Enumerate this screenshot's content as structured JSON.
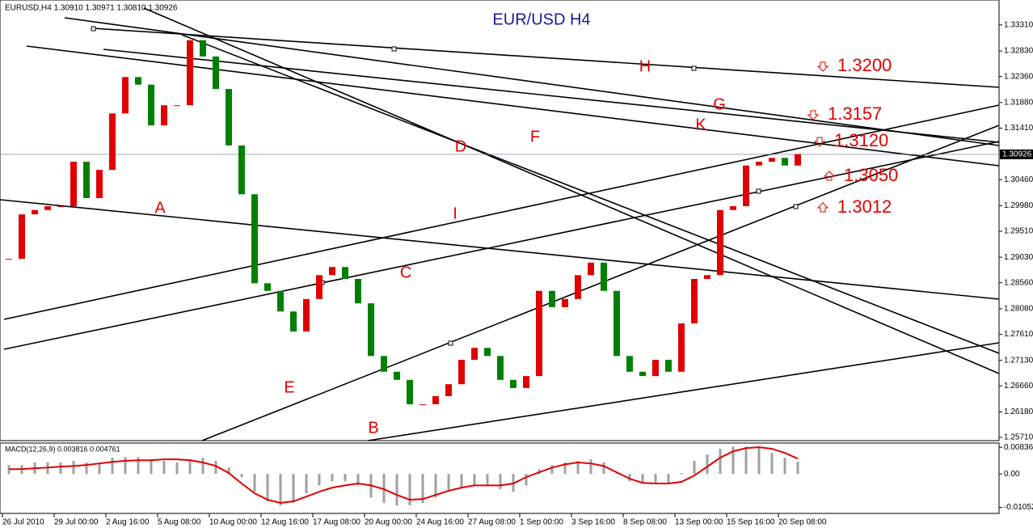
{
  "chart_data": [
    {
      "type": "candlestick",
      "title": "EUR/USD  H4",
      "info": "EURUSD,H4  1.30910 1.30971 1.30810 1.30926",
      "categories": [
        "26 Jul 2010",
        null,
        null,
        null,
        "29 Jul 00:00",
        null,
        null,
        null,
        "2 Aug 16:00",
        null,
        null,
        null,
        "5 Aug 08:00",
        null,
        null,
        null,
        "10 Aug 00:00",
        null,
        null,
        null,
        "12 Aug 16:00",
        null,
        null,
        null,
        "17 Aug 08:00",
        null,
        null,
        null,
        "20 Aug 00:00",
        null,
        null,
        null,
        "24 Aug 16:00",
        null,
        null,
        null,
        "27 Aug 08:00",
        null,
        null,
        null,
        "1 Sep 00:00",
        null,
        null,
        null,
        "3 Sep 16:00",
        null,
        null,
        null,
        "8 Sep 08:00",
        null,
        null,
        null,
        "13 Sep 00:00",
        null,
        null,
        null,
        "15 Sep 16:00",
        null,
        null,
        null,
        "20 Sep 08:00",
        null
      ],
      "close": [
        1.29,
        1.2982,
        1.299,
        1.2997,
        1.2997,
        1.3079,
        1.3012,
        1.3064,
        1.3168,
        1.3235,
        1.3221,
        1.3146,
        1.3183,
        1.3183,
        1.3303,
        1.3273,
        1.3213,
        1.3109,
        1.3019,
        1.2855,
        1.2841,
        1.2803,
        1.2766,
        1.2826,
        1.287,
        1.2885,
        1.2863,
        1.2818,
        1.2721,
        1.2692,
        1.2677,
        1.2632,
        1.2632,
        1.2647,
        1.2669,
        1.2714,
        1.2736,
        1.2721,
        1.2677,
        1.2662,
        1.2684,
        1.2841,
        1.2811,
        1.2826,
        1.287,
        1.2893,
        1.2841,
        1.2721,
        1.2692,
        1.2684,
        1.2714,
        1.2692,
        1.2781,
        1.2863,
        1.287,
        1.299,
        1.2997,
        1.3072,
        1.3079,
        1.3086,
        1.3072,
        1.3093
      ],
      "up_color": "#e00000",
      "down_color": "#008000",
      "ylim": [
        1.2565,
        1.3377
      ],
      "yticks": [
        {
          "value": 1.3331,
          "label": "1.33310"
        },
        {
          "value": 1.3283,
          "label": "1.32830"
        },
        {
          "value": 1.3236,
          "label": "1.32360"
        },
        {
          "value": 1.3188,
          "label": "1.31880"
        },
        {
          "value": 1.3141,
          "label": "1.31410"
        },
        {
          "value": 1.3046,
          "label": "1.30460"
        },
        {
          "value": 1.2998,
          "label": "1.29980"
        },
        {
          "value": 1.2951,
          "label": "1.29510"
        },
        {
          "value": 1.2903,
          "label": "1.29030"
        },
        {
          "value": 1.2856,
          "label": "1.28560"
        },
        {
          "value": 1.2808,
          "label": "1.28080"
        },
        {
          "value": 1.2761,
          "label": "1.27610"
        },
        {
          "value": 1.2713,
          "label": "1.27130"
        },
        {
          "value": 1.2666,
          "label": "1.26660"
        },
        {
          "value": 1.2618,
          "label": "1.26180"
        },
        {
          "value": 1.2571,
          "label": "1.25710"
        }
      ],
      "last_price": 1.30926,
      "annotations": [
        "A",
        "B",
        "C",
        "D",
        "E",
        "F",
        "G",
        "H",
        "I",
        "K"
      ],
      "levels": [
        "1.3200",
        "1.3157",
        "1.3120",
        "1.3050",
        "1.3012"
      ]
    },
    {
      "type": "macd",
      "label": "MACD(12,26,9) 0.003816 0.004761",
      "series": [
        {
          "color": "#a0a0a0",
          "values": [
            0.0028,
            0.0028,
            0.0036,
            0.0036,
            0.0036,
            0.0041,
            0.0036,
            0.0036,
            0.0051,
            0.0053,
            0.0053,
            0.0046,
            0.0041,
            0.0036,
            0.0046,
            0.0051,
            0.0041,
            0.002,
            -0.001,
            -0.0056,
            -0.0086,
            -0.0099,
            -0.0091,
            -0.0061,
            -0.0036,
            -0.0023,
            -0.0023,
            -0.0036,
            -0.0074,
            -0.0091,
            -0.0099,
            -0.0099,
            -0.0091,
            -0.0074,
            -0.0056,
            -0.0041,
            -0.0036,
            -0.0036,
            -0.0048,
            -0.0056,
            -0.0036,
            0.0015,
            0.0028,
            0.0036,
            0.0041,
            0.0046,
            0.0036,
            0.0003,
            -0.0023,
            -0.003,
            -0.003,
            -0.003,
            0.0003,
            0.0041,
            0.0061,
            0.0079,
            0.0086,
            0.0086,
            0.0086,
            0.0066,
            0.0051,
            0.0038
          ]
        },
        {
          "color": "#e00000",
          "values": [
            0.0015,
            0.0015,
            0.0018,
            0.002,
            0.0023,
            0.0025,
            0.0028,
            0.0033,
            0.0038,
            0.0041,
            0.0043,
            0.0043,
            0.0046,
            0.0046,
            0.0043,
            0.0036,
            0.0025,
            0.0003,
            -0.003,
            -0.0061,
            -0.0081,
            -0.0091,
            -0.0086,
            -0.0071,
            -0.0056,
            -0.0043,
            -0.0036,
            -0.003,
            -0.0036,
            -0.0048,
            -0.0066,
            -0.0081,
            -0.0079,
            -0.0066,
            -0.0053,
            -0.0043,
            -0.0036,
            -0.0036,
            -0.0036,
            -0.003,
            -0.001,
            0.0005,
            0.002,
            0.003,
            0.0036,
            0.0033,
            0.0025,
            0.0005,
            -0.0015,
            -0.0028,
            -0.003,
            -0.003,
            -0.0025,
            -0.0005,
            0.0023,
            0.0051,
            0.0071,
            0.0081,
            0.0084,
            0.0079,
            0.0066,
            0.0048
          ]
        }
      ],
      "ylim": [
        -0.0124,
        0.0097
      ],
      "yticks": [
        0.008362,
        {
          "value": 0,
          "label": "0.00"
        },
        -0.01052
      ]
    }
  ]
}
